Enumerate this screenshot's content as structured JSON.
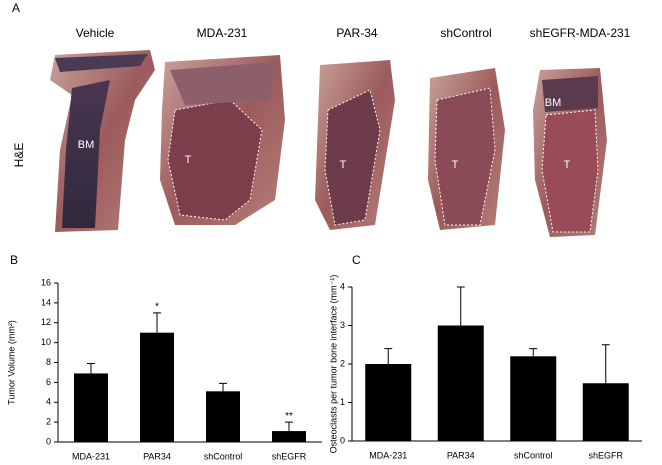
{
  "panel_a": {
    "label": "A",
    "row_label": "H&E",
    "columns": [
      {
        "title": "Vehicle",
        "labels": [
          "BM"
        ]
      },
      {
        "title": "MDA-231",
        "labels": [
          "T"
        ]
      },
      {
        "title": "PAR-34",
        "labels": [
          "T"
        ]
      },
      {
        "title": "shControl",
        "labels": [
          "T"
        ]
      },
      {
        "title": "shEGFR-MDA-231",
        "labels": [
          "BM",
          "T"
        ]
      }
    ]
  },
  "chart_data": [
    {
      "type": "bar",
      "panel_label": "B",
      "y_label": "Tumor Volume (mm²)",
      "categories": [
        "MDA-231",
        "PAR34",
        "shControl",
        "shEGFR"
      ],
      "values": [
        6.9,
        11,
        5.1,
        1.1
      ],
      "errors": [
        1.0,
        2.0,
        0.8,
        0.9
      ],
      "value_annotations": [
        null,
        "*",
        null,
        "**"
      ],
      "color": "#000000",
      "ylim": [
        0,
        16
      ],
      "yticks": [
        0,
        2,
        4,
        6,
        8,
        10,
        12,
        14,
        16
      ]
    },
    {
      "type": "bar",
      "panel_label": "C",
      "y_label": "Osteoclasts per tumor bone interface (mm⁻¹)",
      "categories": [
        "MDA-231",
        "PAR34",
        "shControl",
        "shEGFR"
      ],
      "values": [
        2,
        3,
        2.2,
        1.5
      ],
      "errors": [
        0.4,
        1.0,
        0.2,
        1.0
      ],
      "color": "#000000",
      "ylim": [
        0,
        4
      ],
      "yticks": [
        0,
        1,
        2,
        3,
        4
      ]
    }
  ]
}
